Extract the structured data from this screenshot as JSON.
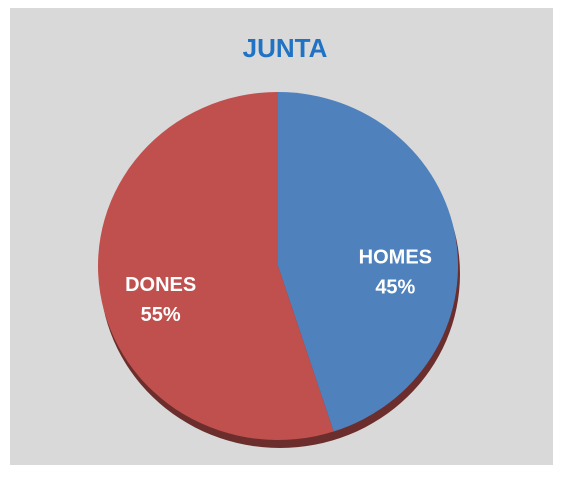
{
  "chart_data": {
    "type": "pie",
    "title": "JUNTA",
    "categories": [
      "HOMES",
      "DONES"
    ],
    "values": [
      45,
      55
    ],
    "value_labels": [
      "45%",
      "55%"
    ],
    "colors": [
      "#4f81bd",
      "#c0504d"
    ]
  }
}
